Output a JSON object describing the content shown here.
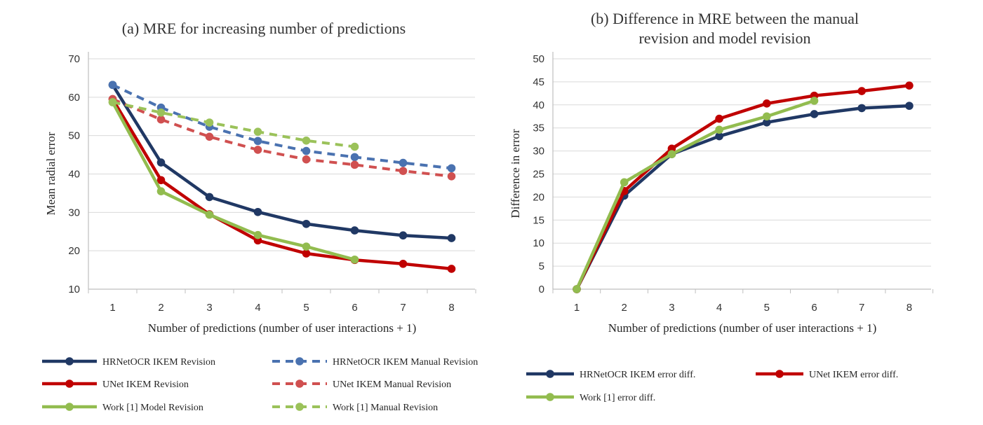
{
  "chart_data": [
    {
      "type": "line",
      "title": "(a) MRE for increasing number of predictions",
      "xlabel": "Number of predictions (number of user interactions + 1)",
      "ylabel": "Mean radial error",
      "categories": [
        "1",
        "2",
        "3",
        "4",
        "5",
        "6",
        "7",
        "8"
      ],
      "yticks": [
        "10",
        "20",
        "30",
        "40",
        "50",
        "60",
        "70"
      ],
      "ylim": [
        10,
        70
      ],
      "grid": "horizontal",
      "legend_position": "bottom",
      "series": [
        {
          "name": "HRNetOCR IKEM Revision",
          "color": "#203864",
          "dashed": false,
          "values": [
            63.2,
            43.0,
            34.0,
            30.1,
            27.0,
            25.3,
            24.0,
            23.3
          ]
        },
        {
          "name": "HRNetOCR IKEM Manual Revision",
          "color": "#4A72B0",
          "dashed": true,
          "values": [
            63.2,
            57.3,
            52.3,
            48.6,
            46.0,
            44.4,
            42.9,
            41.5
          ]
        },
        {
          "name": "UNet IKEM Revision",
          "color": "#C00000",
          "dashed": false,
          "values": [
            59.5,
            38.4,
            29.5,
            22.7,
            19.3,
            17.6,
            16.6,
            15.3
          ]
        },
        {
          "name": "UNet IKEM Manual Revision",
          "color": "#D05050",
          "dashed": true,
          "values": [
            59.5,
            54.2,
            49.7,
            46.3,
            43.8,
            42.4,
            40.8,
            39.4
          ]
        },
        {
          "name": "Work [1] Model Revision",
          "color": "#92BC4F",
          "dashed": false,
          "values": [
            58.7,
            35.5,
            29.4,
            24.1,
            21.1,
            17.7,
            null,
            null
          ]
        },
        {
          "name": "Work [1] Manual Revision",
          "color": "#9BC25A",
          "dashed": true,
          "values": [
            58.7,
            56.0,
            53.4,
            51.0,
            48.7,
            47.1,
            null,
            null
          ]
        }
      ]
    },
    {
      "type": "line",
      "title": "(b) Difference in MRE between the manual revision and model revision",
      "title_lines": [
        "(b) Difference in MRE between the manual",
        "revision and model revision"
      ],
      "xlabel": "Number of predictions (number of user interactions + 1)",
      "ylabel": "Difference in error",
      "categories": [
        "1",
        "2",
        "3",
        "4",
        "5",
        "6",
        "7",
        "8"
      ],
      "yticks": [
        "0",
        "5",
        "10",
        "15",
        "20",
        "25",
        "30",
        "35",
        "40",
        "45",
        "50"
      ],
      "ylim": [
        0,
        50
      ],
      "grid": "horizontal",
      "legend_position": "bottom",
      "series": [
        {
          "name": "HRNetOCR IKEM error diff.",
          "color": "#203864",
          "dashed": false,
          "values": [
            0,
            20.3,
            29.3,
            33.2,
            36.2,
            38.0,
            39.3,
            39.8
          ]
        },
        {
          "name": "UNet IKEM error diff.",
          "color": "#C00000",
          "dashed": false,
          "values": [
            0,
            21.3,
            30.5,
            37.0,
            40.3,
            42.0,
            43.0,
            44.2
          ]
        },
        {
          "name": "Work [1] error diff.",
          "color": "#92BC4F",
          "dashed": false,
          "values": [
            0,
            23.2,
            29.3,
            34.6,
            37.5,
            40.9,
            null,
            null
          ]
        }
      ]
    }
  ]
}
